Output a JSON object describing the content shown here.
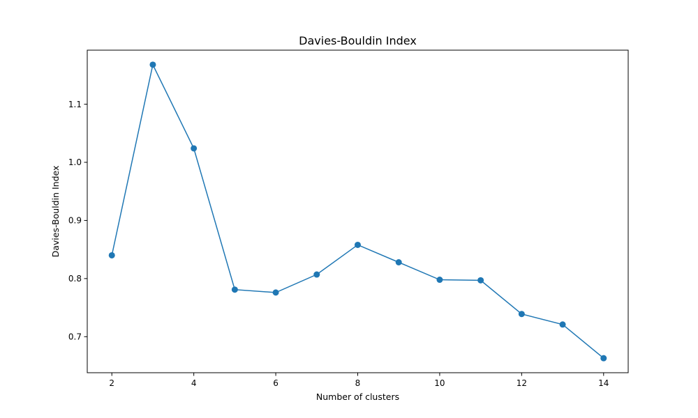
{
  "chart_data": {
    "type": "line",
    "title": "Davies-Bouldin Index",
    "xlabel": "Number of clusters",
    "ylabel": "Davies-Bouldin Index",
    "x": [
      2,
      3,
      4,
      5,
      6,
      7,
      8,
      9,
      10,
      11,
      12,
      13,
      14
    ],
    "series": [
      {
        "values": [
          0.84,
          1.168,
          1.024,
          0.781,
          0.776,
          0.807,
          0.858,
          0.828,
          0.798,
          0.797,
          0.739,
          0.721,
          0.663
        ],
        "color": "#1f77b4",
        "marker": "circle"
      }
    ],
    "xlim": [
      1.4,
      14.6
    ],
    "ylim": [
      0.638,
      1.193
    ],
    "xticks": [
      2,
      4,
      6,
      8,
      10,
      12,
      14
    ],
    "yticks": [
      0.7,
      0.8,
      0.9,
      1.0,
      1.1
    ],
    "ytick_labels": [
      "0.7",
      "0.8",
      "0.9",
      "1.0",
      "1.1"
    ],
    "grid": false,
    "legend": "none"
  }
}
